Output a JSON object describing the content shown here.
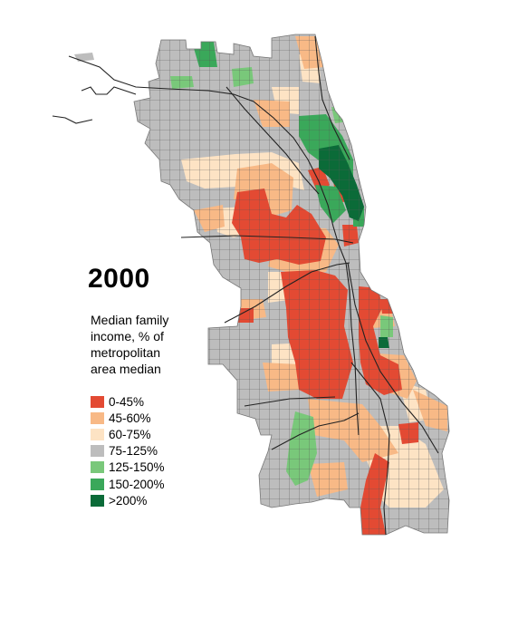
{
  "map": {
    "year": "2000",
    "legend_title_lines": [
      "Median family",
      "income, % of",
      "metropolitan",
      "area median"
    ],
    "legend": [
      {
        "label": "0-45%",
        "color": "#e34a33"
      },
      {
        "label": "45-60%",
        "color": "#f8b986"
      },
      {
        "label": "60-75%",
        "color": "#fde3c4"
      },
      {
        "label": "75-125%",
        "color": "#bdbdbd"
      },
      {
        "label": "125-150%",
        "color": "#79c87a"
      },
      {
        "label": "150-200%",
        "color": "#3aa85a"
      },
      {
        "label": ">200%",
        "color": "#0b6b38"
      }
    ]
  }
}
